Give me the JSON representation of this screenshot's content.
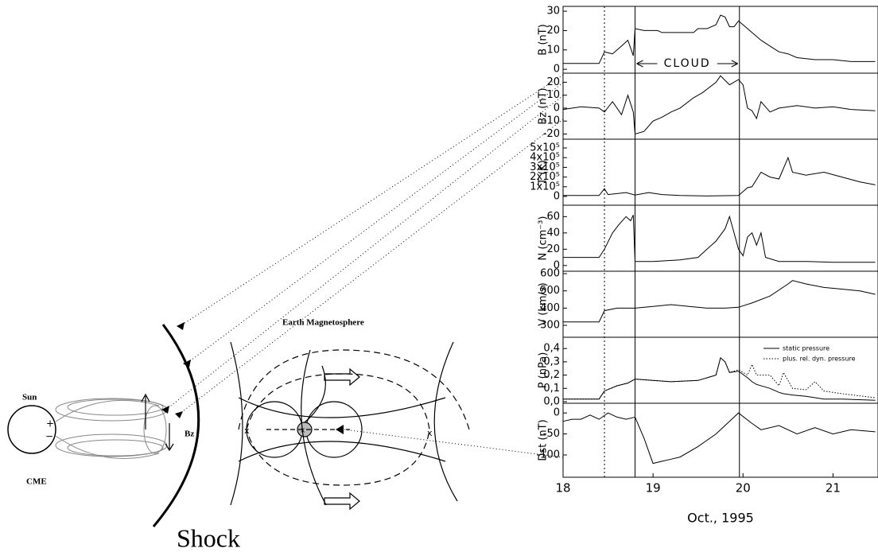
{
  "chart_data": {
    "type": "panels",
    "xlim": [
      18,
      21.5
    ],
    "xticks": [
      18,
      19,
      20,
      21
    ],
    "xlabel": "Oct., 1995",
    "event_lines": [
      {
        "x": 18.46,
        "style": "dotted"
      },
      {
        "x": 18.8,
        "style": "solid"
      },
      {
        "x": 19.96,
        "style": "solid"
      }
    ],
    "annotation": "CLOUD",
    "panels": [
      {
        "type": "line",
        "ylabel": "B (nT)",
        "ylim": [
          -2,
          32.5
        ],
        "yticks": [
          0,
          10,
          20,
          30
        ],
        "color": "#000000",
        "x": [
          18,
          18.2,
          18.4,
          18.46,
          18.55,
          18.65,
          18.72,
          18.78,
          18.8,
          18.9,
          19.05,
          19.1,
          19.3,
          19.45,
          19.5,
          19.6,
          19.7,
          19.75,
          19.8,
          19.85,
          19.9,
          19.95,
          20,
          20.1,
          20.2,
          20.3,
          20.4,
          20.5,
          20.6,
          20.8,
          21,
          21.2,
          21.47
        ],
        "values": [
          3,
          3,
          3,
          9,
          8,
          12,
          15,
          7,
          21,
          20,
          20,
          19,
          19,
          19,
          21,
          21,
          23,
          28,
          27,
          22,
          22,
          25,
          23,
          19,
          15,
          12,
          9,
          8,
          6,
          5,
          5,
          4,
          4
        ]
      },
      {
        "type": "line",
        "ylabel": "Bz (nT)",
        "ylim": [
          -24,
          27
        ],
        "yticks": [
          -20,
          -10,
          0,
          10,
          20
        ],
        "color": "#000000",
        "x": [
          18,
          18.2,
          18.4,
          18.46,
          18.55,
          18.65,
          18.72,
          18.78,
          18.8,
          18.9,
          19,
          19.1,
          19.2,
          19.3,
          19.45,
          19.55,
          19.7,
          19.75,
          19.85,
          19.95,
          20,
          20.05,
          20.1,
          20.15,
          20.2,
          20.3,
          20.4,
          20.6,
          20.8,
          21,
          21.2,
          21.47
        ],
        "values": [
          -1,
          1,
          0,
          -3,
          5,
          -5,
          10,
          -3,
          -20,
          -18,
          -10,
          -7,
          -3,
          0,
          8,
          12,
          20,
          25,
          18,
          22,
          18,
          0,
          -2,
          -8,
          5,
          -3,
          0,
          2,
          0,
          1,
          -1,
          -2
        ]
      },
      {
        "type": "line",
        "ylabel": "T (K)",
        "ylim": [
          -90000,
          590000
        ],
        "yticks": [
          0,
          {
            "value": 100000,
            "label": "1x10⁵"
          },
          {
            "value": 200000,
            "label": "2x10⁵"
          },
          {
            "value": 300000,
            "label": "3x10⁵"
          },
          {
            "value": 400000,
            "label": "4x10⁵"
          },
          {
            "value": 500000,
            "label": "5x10⁵"
          }
        ],
        "color": "#000000",
        "x": [
          18,
          18.4,
          18.46,
          18.5,
          18.7,
          18.8,
          18.95,
          19.1,
          19.3,
          19.6,
          19.95,
          20,
          20.05,
          20.1,
          20.2,
          20.3,
          20.4,
          20.5,
          20.55,
          20.7,
          20.9,
          21.1,
          21.3,
          21.47
        ],
        "values": [
          10000,
          10000,
          80000,
          20000,
          40000,
          15000,
          40000,
          20000,
          10000,
          5000,
          10000,
          50000,
          90000,
          100000,
          250000,
          200000,
          180000,
          400000,
          250000,
          220000,
          250000,
          200000,
          150000,
          120000
        ]
      },
      {
        "type": "line",
        "ylabel": "N (cm⁻³)",
        "ylim": [
          -7,
          74
        ],
        "yticks": [
          0,
          20,
          40,
          60
        ],
        "color": "#000000",
        "x": [
          18,
          18.4,
          18.46,
          18.55,
          18.62,
          18.7,
          18.75,
          18.78,
          18.8,
          19,
          19.3,
          19.5,
          19.6,
          19.7,
          19.8,
          19.85,
          19.9,
          19.95,
          20,
          20.05,
          20.1,
          20.15,
          20.2,
          20.25,
          20.4,
          20.7,
          21,
          21.47
        ],
        "values": [
          10,
          10,
          20,
          40,
          50,
          60,
          55,
          62,
          5,
          5,
          7,
          10,
          20,
          30,
          45,
          60,
          40,
          20,
          12,
          35,
          40,
          25,
          40,
          10,
          5,
          5,
          4,
          4
        ]
      },
      {
        "type": "line",
        "ylabel": "V (km/s)",
        "ylim": [
          231,
          614
        ],
        "yticks": [
          300,
          400,
          500,
          600
        ],
        "color": "#000000",
        "x": [
          18,
          18.4,
          18.46,
          18.6,
          18.8,
          19,
          19.2,
          19.4,
          19.6,
          19.8,
          19.95,
          20.1,
          20.3,
          20.5,
          20.55,
          20.7,
          20.9,
          21.1,
          21.3,
          21.47
        ],
        "values": [
          320,
          320,
          385,
          400,
          400,
          410,
          420,
          410,
          400,
          400,
          405,
          430,
          470,
          540,
          560,
          540,
          520,
          510,
          500,
          480
        ]
      },
      {
        "type": "line",
        "ylabel": "P (nPa)",
        "ylim": [
          -0.012,
          0.485
        ],
        "yticks": [
          {
            "value": 0,
            "label": "0,0"
          },
          {
            "value": 0.1,
            "label": "0,1"
          },
          {
            "value": 0.2,
            "label": "0,2"
          },
          {
            "value": 0.3,
            "label": "0,3"
          },
          {
            "value": 0.4,
            "label": "0,4"
          }
        ],
        "legend": "top-right",
        "x": [
          18,
          18.4,
          18.46,
          18.6,
          18.72,
          18.8,
          19,
          19.2,
          19.5,
          19.7,
          19.75,
          19.8,
          19.85,
          19.95,
          20.05,
          20.1,
          20.15,
          20.3,
          20.4,
          20.45,
          20.55,
          20.7,
          20.8,
          20.9,
          21.1,
          21.47
        ],
        "series": [
          {
            "name": "static pressure",
            "color": "#000000",
            "dash": "solid",
            "values": [
              0.02,
              0.02,
              0.08,
              0.12,
              0.14,
              0.17,
              0.16,
              0.15,
              0.16,
              0.2,
              0.33,
              0.3,
              0.22,
              0.23,
              0.18,
              0.15,
              0.13,
              0.1,
              0.07,
              0.06,
              0.05,
              0.04,
              0.03,
              0.02,
              0.02,
              0.01
            ]
          },
          {
            "name": "plus. rel. dyn. pressure",
            "color": "#000000",
            "dash": "dotted",
            "values": [
              0.02,
              0.02,
              0.08,
              0.12,
              0.14,
              0.17,
              0.16,
              0.15,
              0.16,
              0.2,
              0.33,
              0.3,
              0.22,
              0.24,
              0.2,
              0.28,
              0.2,
              0.2,
              0.12,
              0.22,
              0.1,
              0.09,
              0.15,
              0.08,
              0.06,
              0.03
            ]
          }
        ]
      },
      {
        "type": "line",
        "ylabel": "Dst (nT)",
        "ylim": [
          -153,
          23
        ],
        "yticks": [
          -100,
          -50,
          0
        ],
        "color": "#000000",
        "x": [
          18,
          18.1,
          18.2,
          18.3,
          18.4,
          18.5,
          18.6,
          18.7,
          18.8,
          18.9,
          19,
          19.1,
          19.2,
          19.3,
          19.5,
          19.7,
          19.9,
          19.95,
          20.1,
          20.2,
          20.4,
          20.6,
          20.8,
          21,
          21.2,
          21.47
        ],
        "values": [
          -20,
          -15,
          -15,
          -5,
          -15,
          0,
          -10,
          -15,
          -10,
          -60,
          -120,
          -115,
          -110,
          -105,
          -80,
          -50,
          -10,
          0,
          -25,
          -40,
          -30,
          -50,
          -35,
          -50,
          -40,
          -45
        ]
      }
    ]
  },
  "diagram": {
    "sun": "Sun",
    "cme": "CME",
    "plus": "+",
    "minus": "−",
    "bz": "Bz",
    "magnetosphere": "Earth Magnetosphere",
    "shock": "Shock",
    "x_points": [
      "x",
      "x",
      "x"
    ]
  }
}
